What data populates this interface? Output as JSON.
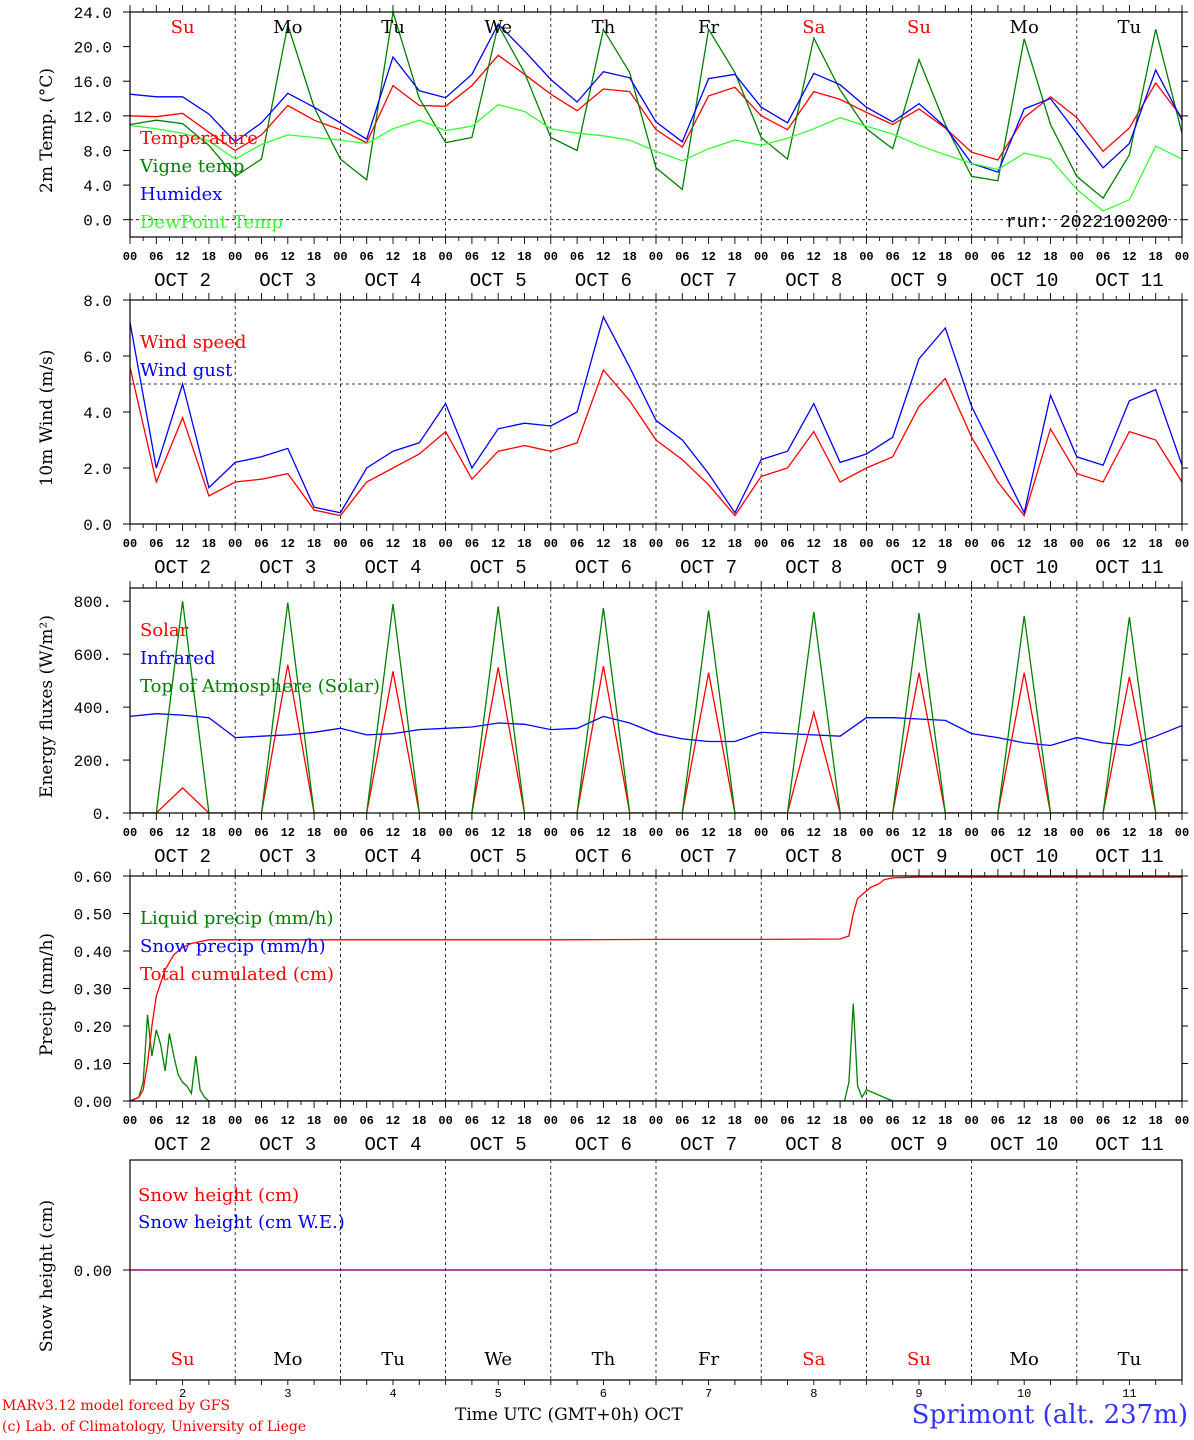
{
  "footer": {
    "model_line": "MARv3.12 model forced by GFS",
    "lab_line": "(c) Lab. of Climatology, University of Liege",
    "xlabel": "Time UTC (GMT+0h) OCT",
    "station": "Sprimont (alt. 237m)"
  },
  "colors": {
    "red": "#ff0000",
    "blue": "#0000ff",
    "darkgreen": "#008000",
    "lightgreen": "#33ff33",
    "purple": "#800080",
    "station": "#3333ff"
  },
  "chart_data": [
    {
      "type": "line",
      "ylabel": "2m Temp. (°C)",
      "ylim": [
        -2,
        24
      ],
      "yticks": [
        0.0,
        4.0,
        8.0,
        12.0,
        16.0,
        20.0,
        24.0
      ],
      "ytick_labels": [
        "0.0",
        "4.0",
        "8.0",
        "12.0",
        "16.0",
        "20.0",
        "24.0"
      ],
      "reference_line": 0,
      "annotation": "run: 2022100200",
      "day_names": [
        "Su",
        "Mo",
        "Tu",
        "We",
        "Th",
        "Fr",
        "Sa",
        "Su",
        "Mo",
        "Tu"
      ],
      "day_name_colors": [
        "red",
        "black",
        "black",
        "black",
        "black",
        "black",
        "red",
        "red",
        "black",
        "black"
      ],
      "x_hours": [
        0,
        6,
        12,
        18,
        24,
        30,
        36,
        42,
        48,
        54,
        60,
        66,
        72,
        78,
        84,
        90,
        96,
        102,
        108,
        114,
        120,
        126,
        132,
        138,
        144,
        150,
        156,
        162,
        168,
        174,
        180,
        186,
        192,
        198,
        204,
        210,
        216,
        222,
        228,
        234,
        240
      ],
      "series": [
        {
          "name": "Temperature",
          "color": "red",
          "values": [
            12.0,
            11.9,
            12.3,
            10.1,
            8.0,
            9.8,
            13.2,
            11.5,
            10.4,
            8.9,
            15.5,
            13.2,
            13.1,
            15.5,
            19.0,
            16.8,
            14.5,
            12.6,
            15.1,
            14.8,
            10.4,
            8.4,
            14.3,
            15.3,
            12.0,
            10.4,
            14.8,
            13.9,
            12.4,
            11.0,
            12.8,
            10.6,
            7.8,
            6.9,
            11.8,
            14.2,
            11.8,
            7.9,
            10.6,
            15.8,
            11.8
          ]
        },
        {
          "name": "Vigne temp",
          "color": "darkgreen",
          "values": [
            11.0,
            11.5,
            11.1,
            8.6,
            5.0,
            7.0,
            22.5,
            13.0,
            7.0,
            4.6,
            24.0,
            14.0,
            8.9,
            9.5,
            22.5,
            17.0,
            9.5,
            8.0,
            22.0,
            17.0,
            6.0,
            3.5,
            22.0,
            17.0,
            9.5,
            7.0,
            21.0,
            15.0,
            10.5,
            8.2,
            18.5,
            11.0,
            5.0,
            4.5,
            20.9,
            11.0,
            5.0,
            2.5,
            7.5,
            22.0,
            10.0
          ]
        },
        {
          "name": "Humidex",
          "color": "blue",
          "values": [
            14.5,
            14.2,
            14.2,
            12.2,
            9.0,
            11.2,
            14.6,
            13.0,
            11.2,
            9.3,
            18.8,
            14.9,
            14.1,
            16.8,
            22.6,
            19.5,
            16.2,
            13.6,
            17.1,
            16.4,
            11.3,
            9.0,
            16.3,
            16.8,
            13.0,
            11.2,
            16.9,
            15.6,
            13.0,
            11.3,
            13.4,
            10.7,
            6.5,
            5.5,
            12.8,
            14.0,
            10.0,
            6.0,
            8.8,
            17.3,
            11.5
          ]
        },
        {
          "name": "DewPoint Temp",
          "color": "lightgreen",
          "values": [
            10.9,
            10.5,
            10.0,
            9.1,
            7.0,
            8.7,
            9.8,
            9.5,
            9.2,
            8.8,
            10.5,
            11.5,
            10.3,
            10.8,
            13.3,
            12.5,
            10.5,
            10.0,
            9.7,
            9.2,
            7.9,
            6.8,
            8.2,
            9.2,
            8.6,
            9.4,
            10.5,
            11.8,
            10.8,
            9.9,
            8.6,
            7.5,
            6.5,
            5.8,
            7.7,
            7.0,
            3.5,
            1.0,
            2.3,
            8.5,
            7.0
          ]
        }
      ]
    },
    {
      "type": "line",
      "ylabel": "10m Wind (m/s)",
      "ylim": [
        0,
        8
      ],
      "yticks": [
        0.0,
        2.0,
        4.0,
        6.0,
        8.0
      ],
      "ytick_labels": [
        "0.0",
        "2.0",
        "4.0",
        "6.0",
        "8.0"
      ],
      "reference_line": 5,
      "x_hours": [
        0,
        6,
        12,
        18,
        24,
        30,
        36,
        42,
        48,
        54,
        60,
        66,
        72,
        78,
        84,
        90,
        96,
        102,
        108,
        114,
        120,
        126,
        132,
        138,
        144,
        150,
        156,
        162,
        168,
        174,
        180,
        186,
        192,
        198,
        204,
        210,
        216,
        222,
        228,
        234,
        240
      ],
      "series": [
        {
          "name": "Wind speed",
          "color": "red",
          "values": [
            5.6,
            1.5,
            3.8,
            1.0,
            1.5,
            1.6,
            1.8,
            0.5,
            0.3,
            1.5,
            2.0,
            2.5,
            3.3,
            1.6,
            2.6,
            2.8,
            2.6,
            2.9,
            5.5,
            4.4,
            3.0,
            2.3,
            1.4,
            0.3,
            1.7,
            2.0,
            3.3,
            1.5,
            2.0,
            2.4,
            4.2,
            5.2,
            3.1,
            1.5,
            0.3,
            3.4,
            1.8,
            1.5,
            3.3,
            3.0,
            1.5
          ]
        },
        {
          "name": "Wind gust",
          "color": "blue",
          "values": [
            7.2,
            2.0,
            5.0,
            1.3,
            2.2,
            2.4,
            2.7,
            0.6,
            0.4,
            2.0,
            2.6,
            2.9,
            4.3,
            2.0,
            3.4,
            3.6,
            3.5,
            4.0,
            7.4,
            5.6,
            3.7,
            3.0,
            1.8,
            0.4,
            2.3,
            2.6,
            4.3,
            2.2,
            2.5,
            3.1,
            5.9,
            7.0,
            4.2,
            2.3,
            0.4,
            4.6,
            2.4,
            2.1,
            4.4,
            4.8,
            2.1
          ]
        }
      ]
    },
    {
      "type": "line",
      "ylabel": "Energy fluxes (W/m²)",
      "ylim": [
        0,
        850
      ],
      "yticks": [
        0,
        200,
        400,
        600,
        800
      ],
      "ytick_labels": [
        "0.",
        "200.",
        "400.",
        "600.",
        "800."
      ],
      "x_hours": [
        0,
        6,
        12,
        18,
        24,
        30,
        36,
        42,
        48,
        54,
        60,
        66,
        72,
        78,
        84,
        90,
        96,
        102,
        108,
        114,
        120,
        126,
        132,
        138,
        144,
        150,
        156,
        162,
        168,
        174,
        180,
        186,
        192,
        198,
        204,
        210,
        216,
        222,
        228,
        234,
        240
      ],
      "series": [
        {
          "name": "Solar",
          "color": "red",
          "values": [
            0,
            0,
            95,
            0,
            0,
            0,
            560,
            0,
            0,
            0,
            535,
            0,
            0,
            0,
            550,
            0,
            0,
            0,
            555,
            0,
            0,
            0,
            530,
            0,
            0,
            0,
            380,
            0,
            0,
            0,
            530,
            0,
            0,
            0,
            530,
            0,
            0,
            0,
            515,
            0,
            0
          ]
        },
        {
          "name": "Infrared",
          "color": "blue",
          "values": [
            365,
            375,
            370,
            360,
            285,
            290,
            295,
            305,
            320,
            295,
            300,
            315,
            320,
            325,
            340,
            335,
            315,
            320,
            365,
            340,
            300,
            280,
            270,
            270,
            305,
            300,
            295,
            290,
            360,
            360,
            355,
            350,
            300,
            285,
            265,
            255,
            285,
            265,
            255,
            290,
            330
          ]
        },
        {
          "name": "Top of Atmosphere (Solar)",
          "color": "darkgreen",
          "values": [
            0,
            0,
            800,
            0,
            0,
            0,
            795,
            0,
            0,
            0,
            790,
            0,
            0,
            0,
            780,
            0,
            0,
            0,
            775,
            0,
            0,
            0,
            765,
            0,
            0,
            0,
            760,
            0,
            0,
            0,
            755,
            0,
            0,
            0,
            745,
            0,
            0,
            0,
            740,
            0,
            0
          ]
        }
      ]
    },
    {
      "type": "line",
      "ylabel": "Precip (mm/h)",
      "ylim": [
        0,
        0.6
      ],
      "yticks": [
        0.0,
        0.1,
        0.2,
        0.3,
        0.4,
        0.5,
        0.6
      ],
      "ytick_labels": [
        "0.00",
        "0.10",
        "0.20",
        "0.30",
        "0.40",
        "0.50",
        "0.60"
      ],
      "series": [
        {
          "name": "Liquid precip (mm/h)",
          "color": "darkgreen",
          "x": [
            0,
            2,
            3,
            4,
            5,
            6,
            7,
            8,
            9,
            10,
            11,
            12,
            13,
            14,
            15,
            16,
            17,
            18,
            24,
            163,
            164,
            165,
            166,
            167,
            168,
            170,
            172,
            174,
            240
          ],
          "values": [
            0.0,
            0.01,
            0.05,
            0.23,
            0.12,
            0.19,
            0.15,
            0.08,
            0.18,
            0.12,
            0.07,
            0.05,
            0.04,
            0.02,
            0.12,
            0.03,
            0.01,
            0.0,
            0.0,
            0.0,
            0.05,
            0.26,
            0.04,
            0.01,
            0.03,
            0.02,
            0.01,
            0.0,
            0.0
          ]
        },
        {
          "name": "Snow precip (mm/h)",
          "color": "blue",
          "x": [
            0,
            240
          ],
          "values": [
            0.0,
            0.0
          ]
        },
        {
          "name": "Total cumulated (cm)",
          "color": "red",
          "x": [
            0,
            2,
            3,
            4,
            5,
            6,
            8,
            10,
            12,
            14,
            16,
            18,
            24,
            48,
            96,
            120,
            144,
            162,
            164,
            165,
            166,
            167,
            168,
            169,
            170,
            171,
            172,
            174,
            180,
            240
          ],
          "values": [
            0.0,
            0.01,
            0.03,
            0.1,
            0.2,
            0.28,
            0.35,
            0.39,
            0.41,
            0.42,
            0.425,
            0.43,
            0.43,
            0.43,
            0.43,
            0.431,
            0.431,
            0.432,
            0.44,
            0.5,
            0.54,
            0.55,
            0.56,
            0.57,
            0.575,
            0.58,
            0.59,
            0.595,
            0.597,
            0.597
          ]
        }
      ]
    },
    {
      "type": "line",
      "ylabel": "Snow height (cm)",
      "ylim": [
        -1,
        1
      ],
      "yticks": [
        0.0
      ],
      "ytick_labels": [
        "0.00"
      ],
      "x_dates": [
        "2",
        "3",
        "4",
        "5",
        "6",
        "7",
        "8",
        "9",
        "10",
        "11"
      ],
      "day_names": [
        "Su",
        "Mo",
        "Tu",
        "We",
        "Th",
        "Fr",
        "Sa",
        "Su",
        "Mo",
        "Tu"
      ],
      "series": [
        {
          "name": "Snow height (cm)",
          "color": "red",
          "x": [
            0,
            240
          ],
          "values": [
            0.0,
            0.0
          ]
        },
        {
          "name": "Snow height (cm W.E.)",
          "color": "blue",
          "x": [
            0,
            240
          ],
          "values": [
            0.0,
            0.0
          ]
        }
      ]
    }
  ],
  "time_axis": {
    "hour_labels": [
      "00",
      "06",
      "12",
      "18"
    ],
    "final_label": "00",
    "month": "OCT",
    "dates": [
      "2",
      "3",
      "4",
      "5",
      "6",
      "7",
      "8",
      "9",
      "10",
      "11"
    ]
  }
}
